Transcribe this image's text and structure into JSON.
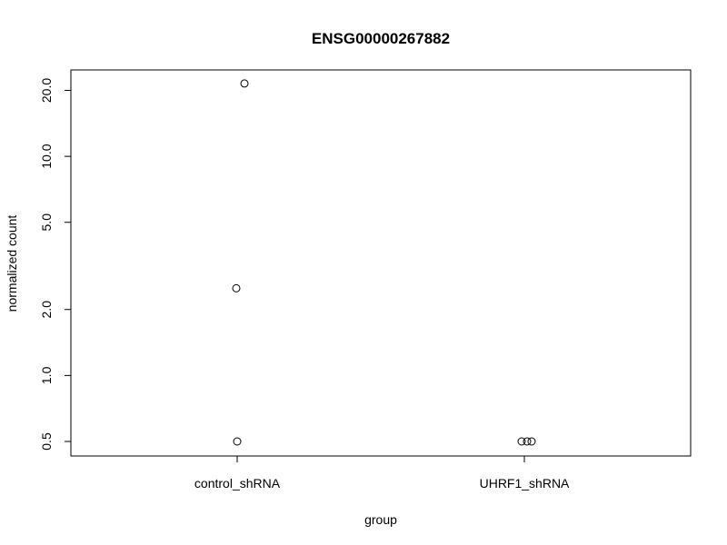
{
  "chart_data": {
    "type": "scatter",
    "title": "ENSG00000267882",
    "xlabel": "group",
    "ylabel": "normalized count",
    "categories": [
      "control_shRNA",
      "UHRF1_shRNA"
    ],
    "y_scale": "log",
    "ylim": [
      0.45,
      23
    ],
    "y_ticks": [
      0.5,
      1.0,
      2.0,
      5.0,
      10.0,
      20.0
    ],
    "y_tick_labels": [
      "0.5",
      "1.0",
      "2.0",
      "5.0",
      "10.0",
      "20.0"
    ],
    "grid": false,
    "points": [
      {
        "category": "control_shRNA",
        "y": 21.5
      },
      {
        "category": "control_shRNA",
        "y": 2.5
      },
      {
        "category": "control_shRNA",
        "y": 0.5
      },
      {
        "category": "UHRF1_shRNA",
        "y": 0.5
      },
      {
        "category": "UHRF1_shRNA",
        "y": 0.5
      },
      {
        "category": "UHRF1_shRNA",
        "y": 0.5
      }
    ]
  }
}
